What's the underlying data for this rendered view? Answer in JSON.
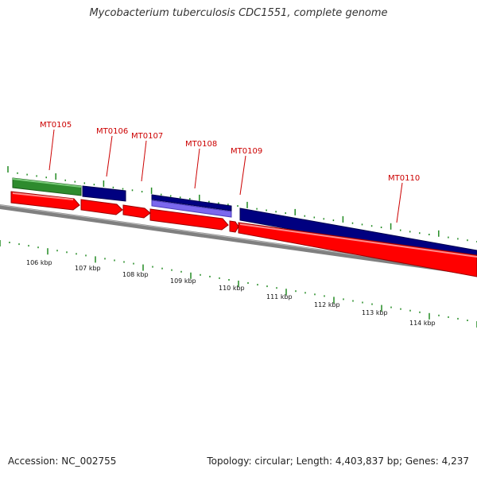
{
  "title": "Mycobacterium tuberculosis CDC1551, complete genome",
  "accession": "Accession: NC_002755",
  "summary": "Topology: circular; Length: 4,403,837 bp; Genes: 4,237",
  "colors": {
    "forward_cds": "#ff0000",
    "cds_dark": "#000080",
    "cds_green": "#2e8b2e",
    "cds_light": "#7b68ee",
    "backbone": "#808080",
    "ticks": "#228b22",
    "gene_label": "#cc0000"
  },
  "gene_labels": [
    "MT0105",
    "MT0106",
    "MT0107",
    "MT0108",
    "MT0109",
    "MT0110"
  ],
  "scale_labels": [
    "106 kbp",
    "107 kbp",
    "108 kbp",
    "109 kbp",
    "110 kbp",
    "111 kbp",
    "112 kbp",
    "113 kbp",
    "114 kbp"
  ]
}
